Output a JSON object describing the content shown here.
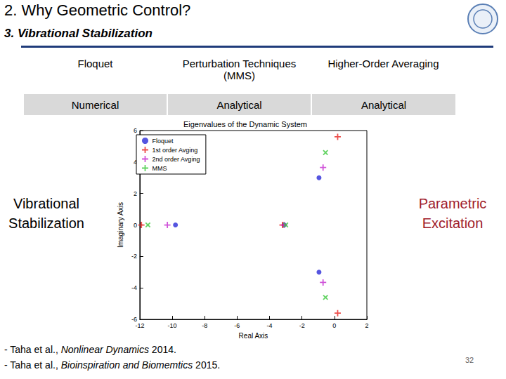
{
  "slide": {
    "title": "2. Why Geometric Control?",
    "subtitle": "3. Vibrational Stabilization",
    "table": {
      "rows": [
        [
          "Floquet",
          "Perturbation Techniques (MMS)",
          "Higher-Order Averaging"
        ],
        [
          "Numerical",
          "Analytical",
          "Analytical"
        ]
      ]
    },
    "left_label": "Vibrational Stabilization",
    "right_label": "Parametric Excitation",
    "references": [
      {
        "prefix": "- Taha et al., ",
        "journal": "Nonlinear Dynamics",
        "suffix": " 2014."
      },
      {
        "prefix": "- Taha et al., ",
        "journal": "Bioinspiration and Biomemtics",
        "suffix": " 2015."
      }
    ],
    "page_number": 32
  },
  "chart_data": {
    "type": "scatter",
    "title": "Eigenvalues of the Dynamic System",
    "x_label": "Real Axis",
    "y_label": "Imaginary Axis",
    "xlim": [
      -12,
      2
    ],
    "xticks": [
      -12,
      -10,
      -8,
      -6,
      -4,
      -2,
      0,
      2
    ],
    "ylim": [
      -6,
      6
    ],
    "yticks": [
      -6,
      -4,
      -2,
      0,
      2,
      4,
      6
    ],
    "grid": false,
    "legend": "upper left",
    "series": [
      {
        "name": "Floquet",
        "color": "#2a2ad8",
        "marker": "circle",
        "x": [
          -9.8,
          -3.1,
          -0.95,
          -0.95
        ],
        "y": [
          0,
          0,
          3.0,
          -3.0
        ]
      },
      {
        "name": "1st order Avging",
        "color": "#e8231f",
        "marker": "plus",
        "x": [
          -11.9,
          -3.2,
          0.2,
          0.2
        ],
        "y": [
          0,
          0,
          5.6,
          -5.6
        ]
      },
      {
        "name": "2nd order Avging",
        "color": "#c42ad0",
        "marker": "plus",
        "x": [
          -10.3,
          -3.1,
          -0.7,
          -0.7
        ],
        "y": [
          0,
          0,
          3.65,
          -3.65
        ]
      },
      {
        "name": "MMS",
        "color": "#3cc83c",
        "marker": "x",
        "x": [
          -11.5,
          -3.0,
          -0.55,
          -0.55
        ],
        "y": [
          0,
          0,
          4.6,
          -4.6
        ]
      }
    ]
  }
}
